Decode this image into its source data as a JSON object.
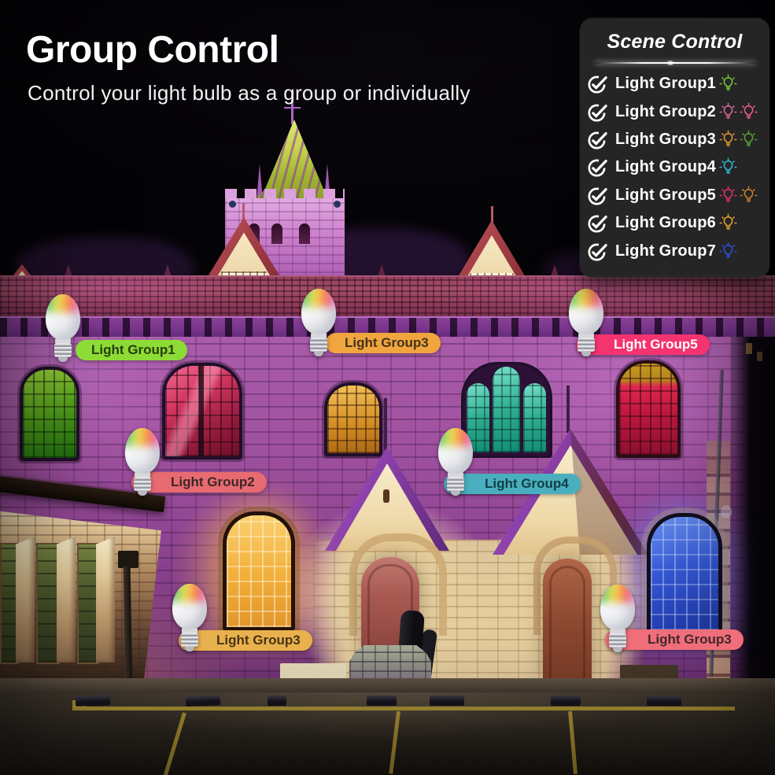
{
  "header": {
    "title": "Group Control",
    "subtitle": "Control your light bulb as a group or individually"
  },
  "scene_control": {
    "title": "Scene Control",
    "items": [
      {
        "label": "Light Group1",
        "checked": true,
        "bulbs": [
          "#7cc937"
        ]
      },
      {
        "label": "Light Group2",
        "checked": true,
        "bulbs": [
          "#e3679b",
          "#ee5d95"
        ]
      },
      {
        "label": "Light Group3",
        "checked": true,
        "bulbs": [
          "#e79b33",
          "#58a438"
        ]
      },
      {
        "label": "Light Group4",
        "checked": true,
        "bulbs": [
          "#35b9d5"
        ]
      },
      {
        "label": "Light Group5",
        "checked": true,
        "bulbs": [
          "#e73069",
          "#d27d2b"
        ]
      },
      {
        "label": "Light Group6",
        "checked": true,
        "bulbs": [
          "#e8a434"
        ]
      },
      {
        "label": "Light Group7",
        "checked": true,
        "bulbs": [
          "#2e4fdf"
        ]
      }
    ]
  },
  "overlays": [
    {
      "label": "Light Group1",
      "pill_bg": "#8cdb36",
      "pill_text": "#26400a"
    },
    {
      "label": "Light Group3",
      "pill_bg": "#f1a53e",
      "pill_text": "#42331b"
    },
    {
      "label": "Light Group5",
      "pill_bg": "#f43370",
      "pill_text": "#ffffff"
    },
    {
      "label": "Light Group2",
      "pill_bg": "#e76b70",
      "pill_text": "#3d2727"
    },
    {
      "label": "Light Group4",
      "pill_bg": "#49afbe",
      "pill_text": "#113d45"
    },
    {
      "label": "Light Group3",
      "pill_bg": "#e9b14d",
      "pill_text": "#463515"
    },
    {
      "label": "Light Group3",
      "pill_bg": "#ef6e7a",
      "pill_text": "#41272c"
    }
  ],
  "icons": {
    "item_check": "check-circle-icon",
    "item_bulb": "bulb-rays-icon",
    "callout_bulb": "rgb-bulb-icon"
  },
  "photo_palette": {
    "building_light": "#a75ba8",
    "roof": "#8a3a56",
    "window_green": "#4e9c1e",
    "window_crimson": "#d23560",
    "window_amber": "#e8a63c",
    "window_teal": "#2fae92",
    "window_blue": "#3558d6",
    "door": "#a85a52",
    "ground_line": "#b49a34"
  }
}
